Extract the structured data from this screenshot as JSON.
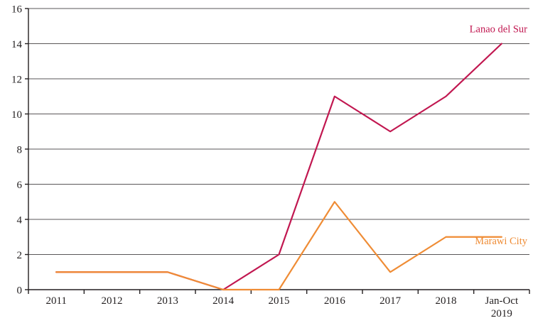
{
  "chart_data": {
    "type": "line",
    "categories": [
      "2011",
      "2012",
      "2013",
      "2014",
      "2015",
      "2016",
      "2017",
      "2018",
      "Jan-Oct\n2019"
    ],
    "series": [
      {
        "name": "Lanao del Sur",
        "color": "#c11750",
        "values": [
          1,
          1,
          1,
          0,
          2,
          11,
          9,
          11,
          14
        ]
      },
      {
        "name": "Marawi City",
        "color": "#ef8c35",
        "values": [
          1,
          1,
          1,
          0,
          0,
          5,
          1,
          3,
          3
        ]
      }
    ],
    "ylim": [
      0,
      16
    ],
    "ytick_step": 2,
    "grid": true,
    "title": "",
    "xlabel": "",
    "ylabel": "",
    "legend_position": "line-end-labels",
    "axis_color": "#231f20"
  }
}
